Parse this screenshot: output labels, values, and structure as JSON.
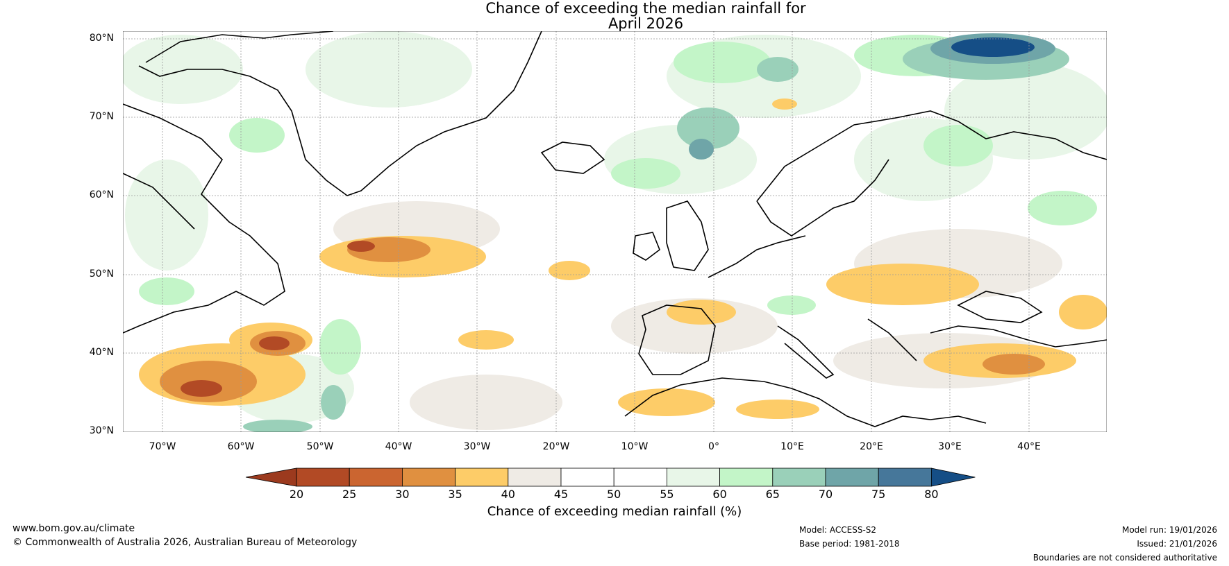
{
  "title": {
    "line1": "Chance of exceeding the median rainfall for",
    "line2": "April 2026"
  },
  "map": {
    "lat_labels": [
      "80°N",
      "70°N",
      "60°N",
      "50°N",
      "40°N",
      "30°N"
    ],
    "lon_labels": [
      "70°W",
      "60°W",
      "50°W",
      "40°W",
      "30°W",
      "20°W",
      "10°W",
      "0°",
      "10°E",
      "20°E",
      "30°E",
      "40°E"
    ],
    "lat_range": [
      30,
      81
    ],
    "lon_range": [
      -75,
      50
    ]
  },
  "colorbar": {
    "title": "Chance of exceeding median rainfall (%)",
    "tick_labels": [
      "20",
      "25",
      "30",
      "35",
      "40",
      "45",
      "50",
      "55",
      "60",
      "65",
      "70",
      "75",
      "80"
    ],
    "colors": [
      "#9c3a1e",
      "#b24a25",
      "#cb6530",
      "#e09040",
      "#fdcc68",
      "#efebe5",
      "#ffffff",
      "#ffffff",
      "#e8f6e8",
      "#c3f5c8",
      "#9ad0b9",
      "#6fa5a8",
      "#46779a",
      "#154e86"
    ]
  },
  "footer": {
    "url": "www.bom.gov.au/climate",
    "copyright": "© Commonwealth of Australia 2026, Australian Bureau of Meteorology",
    "model": "Model: ACCESS-S2",
    "base_period": "Base period: 1981-2018",
    "model_run": "Model run: 19/01/2026",
    "issued": "Issued: 21/01/2026",
    "disclaimer": "Boundaries are not considered authoritative"
  }
}
